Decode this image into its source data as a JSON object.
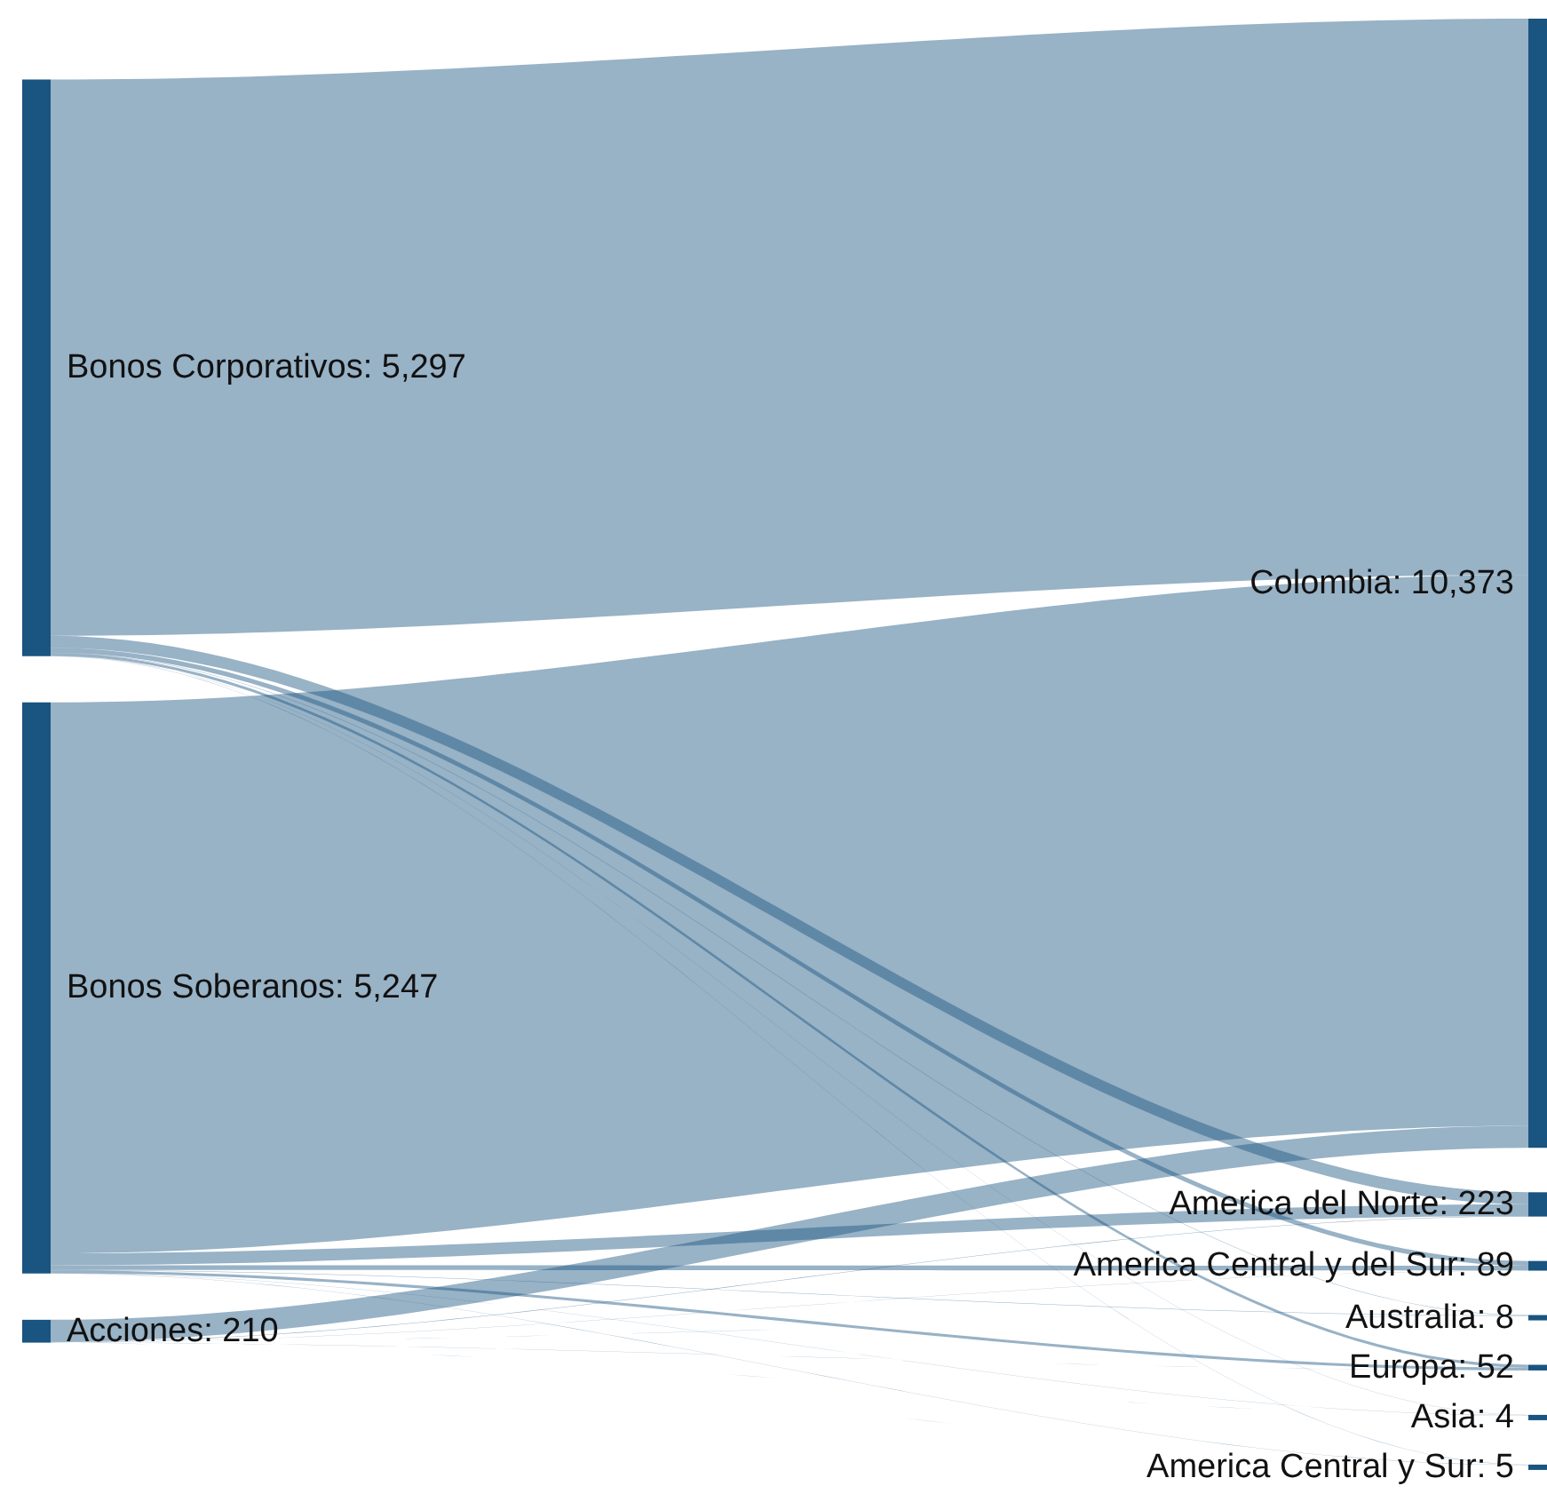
{
  "chart_data": {
    "type": "other",
    "color": "#1a5480",
    "categories": [
      "Bonos Corporativos",
      "Bonos Soberanos",
      "Acciones",
      "Colombia",
      "America del Norte",
      "America Central y del Sur",
      "Australia",
      "Europa",
      "Asia",
      "America Central y Sur"
    ],
    "values": [
      5297,
      5247,
      210,
      10373,
      223,
      89,
      8,
      52,
      4,
      5
    ],
    "value_labels": [
      ": 5,297",
      ": 5,247",
      ": 210",
      ": 10,373",
      ": 223",
      ": 89",
      ": 8",
      ": 52",
      ": 4",
      ": 5"
    ]
  }
}
